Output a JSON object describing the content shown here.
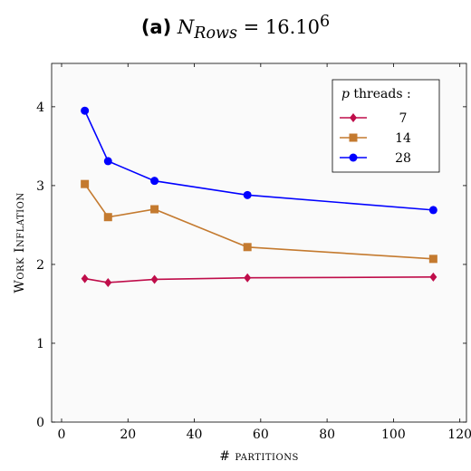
{
  "figure": {
    "label": "(a)",
    "title_var": "N",
    "title_sub": "Rows",
    "title_eq": " = 16.10",
    "title_sup": "6"
  },
  "chart_data": {
    "type": "line",
    "xlabel": "# partitions",
    "ylabel": "Work Inflation",
    "xlim": [
      -3,
      122
    ],
    "ylim": [
      0,
      4.55
    ],
    "xticks": [
      0,
      20,
      40,
      60,
      80,
      100,
      120
    ],
    "yticks": [
      0,
      1,
      2,
      3,
      4
    ],
    "grid": false,
    "legend_placement": "top-right",
    "legend_title": "p threads :",
    "x": [
      7,
      14,
      28,
      56,
      112
    ],
    "series": [
      {
        "name": "7",
        "values": [
          1.82,
          1.77,
          1.81,
          1.83,
          1.84
        ],
        "color": "#bf0d4a",
        "marker": "diamond"
      },
      {
        "name": "14",
        "values": [
          3.02,
          2.6,
          2.7,
          2.22,
          2.07
        ],
        "color": "#c47a2f",
        "marker": "square"
      },
      {
        "name": "28",
        "values": [
          3.95,
          3.31,
          3.06,
          2.88,
          2.69
        ],
        "color": "#0000ff",
        "marker": "circle"
      }
    ]
  }
}
